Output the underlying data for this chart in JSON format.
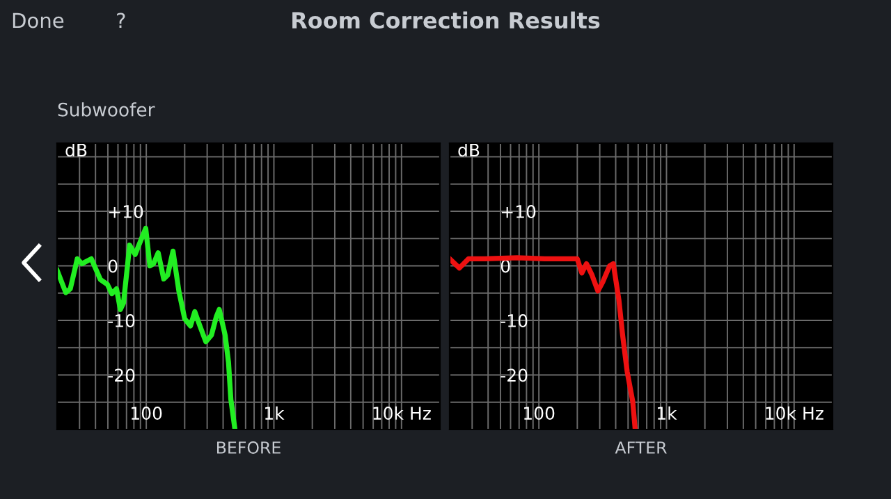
{
  "chart_data": [
    {
      "type": "line",
      "title": "Room Correction Results",
      "subtitle": "Subwoofer",
      "annotations": [
        "Done",
        "?"
      ],
      "xlabel": "BEFORE",
      "ylabel": "dB",
      "log": "x",
      "grid": true,
      "marker": "none",
      "line_style": "solid",
      "xlim": [
        20,
        20000
      ],
      "ylim": [
        -30,
        22.5
      ],
      "xticks": [
        {
          "value": 20,
          "label": null
        },
        {
          "value": 30,
          "label": null
        },
        {
          "value": 40,
          "label": null
        },
        {
          "value": 50,
          "label": null
        },
        {
          "value": 60,
          "label": null
        },
        {
          "value": 70,
          "label": null
        },
        {
          "value": 80,
          "label": null
        },
        {
          "value": 90,
          "label": null
        },
        100,
        {
          "value": 200,
          "label": null
        },
        {
          "value": 300,
          "label": null
        },
        {
          "value": 400,
          "label": null
        },
        {
          "value": 500,
          "label": null
        },
        {
          "value": 600,
          "label": null
        },
        {
          "value": 700,
          "label": null
        },
        {
          "value": 800,
          "label": null
        },
        {
          "value": 900,
          "label": null
        },
        {
          "value": 1000,
          "label": "1k"
        },
        {
          "value": 2000,
          "label": null
        },
        {
          "value": 3000,
          "label": null
        },
        {
          "value": 4000,
          "label": null
        },
        {
          "value": 5000,
          "label": null
        },
        {
          "value": 6000,
          "label": null
        },
        {
          "value": 7000,
          "label": null
        },
        {
          "value": 8000,
          "label": null
        },
        {
          "value": 9000,
          "label": null
        },
        {
          "value": 10000,
          "label": "10k Hz"
        },
        {
          "value": 20000,
          "label": null
        }
      ],
      "yticks": [
        {
          "value": -25,
          "label": null
        },
        -20,
        {
          "value": -15,
          "label": null
        },
        -10,
        {
          "value": -5,
          "label": null
        },
        0,
        {
          "value": 5,
          "label": null
        },
        {
          "value": 10,
          "label": "+10"
        },
        {
          "value": 15,
          "label": null
        },
        {
          "value": 20,
          "label": null
        }
      ],
      "series": [
        {
          "color": "#22ee22",
          "x": [
            20,
            23.4,
            25.4,
            28.8,
            31.3,
            37.1,
            43.7,
            49.6,
            53.8,
            58.5,
            62.6,
            66.3,
            74.1,
            81.8,
            88.9,
            99,
            106.7,
            114,
            124,
            137,
            147,
            162,
            180,
            200,
            222,
            240,
            263,
            293,
            324,
            354,
            373,
            415,
            441,
            460,
            492
          ],
          "values": [
            -0.8,
            -4.9,
            -4.2,
            1.3,
            0.4,
            1.3,
            -2.5,
            -3.4,
            -5.1,
            -4.2,
            -8.0,
            -6.8,
            3.8,
            2.1,
            4.2,
            6.9,
            0,
            0.4,
            2.4,
            -2.4,
            -1.7,
            2.7,
            -4.6,
            -9.7,
            -11,
            -8.4,
            -11,
            -13.9,
            -12.7,
            -9.3,
            -8.0,
            -12.7,
            -17.7,
            -24.5,
            -29.5
          ]
        }
      ]
    },
    {
      "type": "line",
      "xlabel": "AFTER",
      "ylabel": "dB",
      "log": "x",
      "grid": true,
      "marker": "none",
      "line_style": "solid",
      "xlim": [
        20,
        20000
      ],
      "ylim": [
        -30,
        22.5
      ],
      "xticks": [
        {
          "value": 20,
          "label": null
        },
        {
          "value": 30,
          "label": null
        },
        {
          "value": 40,
          "label": null
        },
        {
          "value": 50,
          "label": null
        },
        {
          "value": 60,
          "label": null
        },
        {
          "value": 70,
          "label": null
        },
        {
          "value": 80,
          "label": null
        },
        {
          "value": 90,
          "label": null
        },
        100,
        {
          "value": 200,
          "label": null
        },
        {
          "value": 300,
          "label": null
        },
        {
          "value": 400,
          "label": null
        },
        {
          "value": 500,
          "label": null
        },
        {
          "value": 600,
          "label": null
        },
        {
          "value": 700,
          "label": null
        },
        {
          "value": 800,
          "label": null
        },
        {
          "value": 900,
          "label": null
        },
        {
          "value": 1000,
          "label": "1k"
        },
        {
          "value": 2000,
          "label": null
        },
        {
          "value": 3000,
          "label": null
        },
        {
          "value": 4000,
          "label": null
        },
        {
          "value": 5000,
          "label": null
        },
        {
          "value": 6000,
          "label": null
        },
        {
          "value": 7000,
          "label": null
        },
        {
          "value": 8000,
          "label": null
        },
        {
          "value": 9000,
          "label": null
        },
        {
          "value": 10000,
          "label": "10k Hz"
        },
        {
          "value": 20000,
          "label": null
        }
      ],
      "yticks": [
        {
          "value": -25,
          "label": null
        },
        -20,
        {
          "value": -15,
          "label": null
        },
        -10,
        {
          "value": -5,
          "label": null
        },
        0,
        {
          "value": 5,
          "label": null
        },
        {
          "value": 10,
          "label": "+10"
        },
        {
          "value": 15,
          "label": null
        },
        {
          "value": 20,
          "label": null
        }
      ],
      "series": [
        {
          "color": "#ee1111",
          "x": [
            20,
            23.8,
            28.1,
            37.7,
            67.6,
            111,
            200,
            217,
            236,
            261,
            290,
            316,
            358,
            383,
            424,
            453,
            492,
            544,
            566
          ],
          "values": [
            1.3,
            -0.4,
            1.3,
            1.3,
            1.5,
            1.3,
            1.3,
            -1.3,
            0.4,
            -1.7,
            -4.6,
            -3.0,
            0,
            0.4,
            -6.3,
            -12.7,
            -19.4,
            -24.9,
            -29.5
          ]
        }
      ]
    }
  ]
}
